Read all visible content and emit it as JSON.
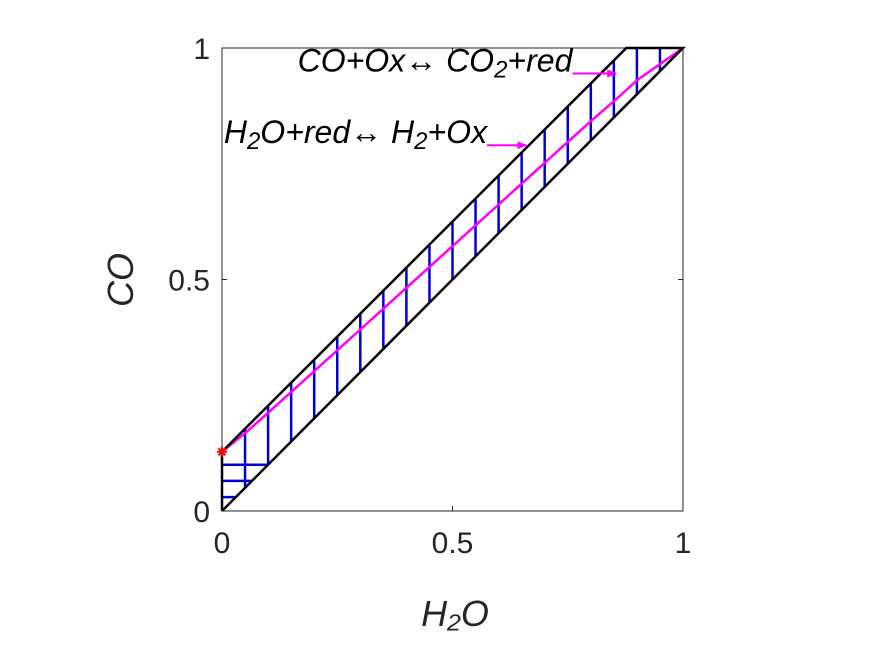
{
  "chart_data": {
    "type": "line",
    "xlabel": "H₂O",
    "ylabel": "CO",
    "xlim": [
      0,
      1
    ],
    "ylim": [
      0,
      1
    ],
    "x_ticks": [
      "0",
      "0.5",
      "1"
    ],
    "y_ticks": [
      "0",
      "0.5",
      "1"
    ],
    "grid": false,
    "series": [
      {
        "role": "boundary",
        "color": "#000000",
        "x": [
          0,
          0,
          0.877,
          1,
          1,
          0
        ],
        "y": [
          0,
          0.128,
          1,
          1,
          1,
          0
        ]
      },
      {
        "role": "trajectory",
        "color": "#ff00ff",
        "x": [
          0,
          0.05,
          0.1,
          0.2,
          0.3,
          0.4,
          0.5,
          0.6,
          0.7,
          0.8,
          0.85,
          0.9,
          0.95,
          1.0
        ],
        "y": [
          0.128,
          0.168,
          0.212,
          0.302,
          0.392,
          0.482,
          0.572,
          0.662,
          0.752,
          0.842,
          0.885,
          0.93,
          0.965,
          1.0
        ]
      }
    ],
    "hatch_vertical": {
      "color": "#0000dd",
      "x": [
        0.05,
        0.1,
        0.15,
        0.2,
        0.25,
        0.3,
        0.35,
        0.4,
        0.45,
        0.5,
        0.55,
        0.6,
        0.65,
        0.7,
        0.75,
        0.8,
        0.85,
        0.9,
        0.95
      ]
    },
    "hatch_horizontal": {
      "color": "#0000dd",
      "y": [
        0.03,
        0.065,
        0.1
      ],
      "x_end": [
        0.03,
        0.065,
        0.1
      ]
    },
    "marker": {
      "x": 0,
      "y": 0.128,
      "symbol": "*",
      "color": "#ff0000"
    },
    "annotations": [
      {
        "parts": [
          [
            "CO+Ox↔ CO",
            false
          ],
          [
            "2",
            true
          ],
          [
            "+red",
            false
          ]
        ],
        "arrow_from": [
          0.76,
          0.945
        ],
        "arrow_to": [
          0.855,
          0.945
        ]
      },
      {
        "parts": [
          [
            "H",
            false
          ],
          [
            "2",
            true
          ],
          [
            "O+red↔ H",
            false
          ],
          [
            "2",
            true
          ],
          [
            "+Ox",
            false
          ]
        ],
        "arrow_from": [
          0.575,
          0.79
        ],
        "arrow_to": [
          0.66,
          0.79
        ]
      }
    ]
  }
}
